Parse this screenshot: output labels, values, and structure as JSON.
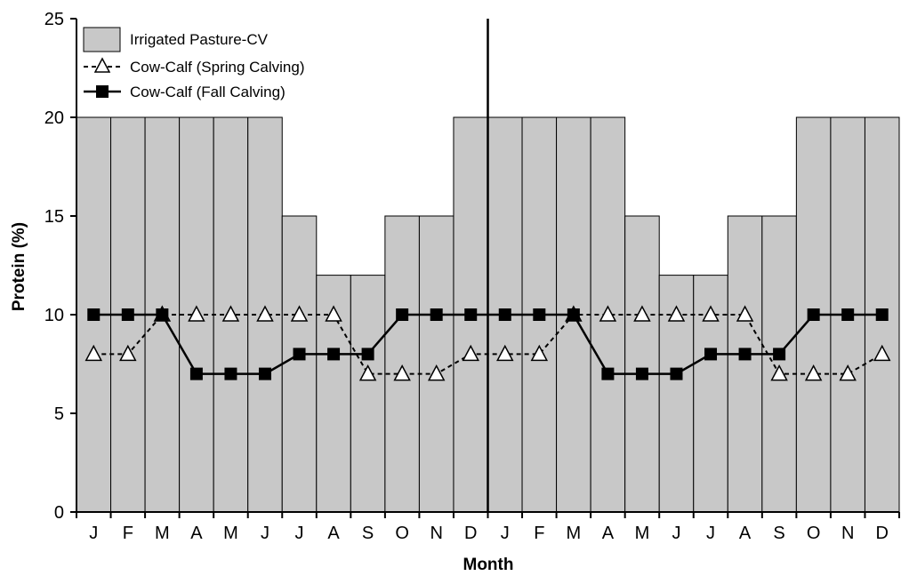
{
  "chart_data": {
    "type": "bar",
    "title": "",
    "xlabel": "Month",
    "ylabel": "Protein (%)",
    "ylim": [
      0,
      25
    ],
    "yticks": [
      "0",
      "5",
      "10",
      "15",
      "20",
      "25"
    ],
    "categories": [
      "J",
      "F",
      "M",
      "A",
      "M",
      "J",
      "J",
      "A",
      "S",
      "O",
      "N",
      "D",
      "J",
      "F",
      "M",
      "A",
      "M",
      "J",
      "J",
      "A",
      "S",
      "O",
      "N",
      "D"
    ],
    "year_divider_after_index": 11,
    "legend_position": "top-left",
    "grid": false,
    "series": [
      {
        "name": "Irrigated Pasture-CV",
        "kind": "bar",
        "color": "#c8c8c8",
        "values": [
          20,
          20,
          20,
          20,
          20,
          20,
          15,
          12,
          12,
          15,
          15,
          20,
          20,
          20,
          20,
          20,
          15,
          12,
          12,
          15,
          15,
          20,
          20,
          20
        ]
      },
      {
        "name": "Cow-Calf (Spring Calving)",
        "kind": "line",
        "line_style": "dashed",
        "marker": "open-triangle",
        "color": "#000000",
        "values": [
          8,
          8,
          10,
          10,
          10,
          10,
          10,
          10,
          7,
          7,
          7,
          8,
          8,
          8,
          10,
          10,
          10,
          10,
          10,
          10,
          7,
          7,
          7,
          8
        ]
      },
      {
        "name": "Cow-Calf (Fall Calving)",
        "kind": "line",
        "line_style": "solid",
        "marker": "filled-square",
        "color": "#000000",
        "values": [
          10,
          10,
          10,
          7,
          7,
          7,
          8,
          8,
          8,
          10,
          10,
          10,
          10,
          10,
          10,
          7,
          7,
          7,
          8,
          8,
          8,
          10,
          10,
          10
        ]
      }
    ]
  }
}
